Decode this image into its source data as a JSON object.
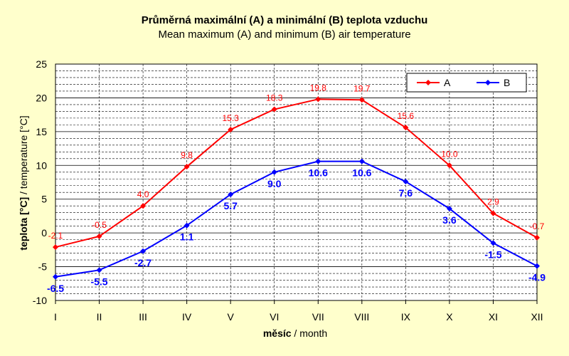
{
  "chart_data": {
    "type": "line",
    "title": "Průměrná maximální (A) a minimální (B) teplota vzduchu",
    "subtitle": "Mean maximum (A) and minimum (B) air temperature",
    "xlabel_bold": "měsíc",
    "xlabel_rest": " / month",
    "ylabel_bold": "teplota [°C]",
    "ylabel_rest": " / temperature [°C]",
    "categories": [
      "I",
      "II",
      "III",
      "IV",
      "V",
      "VI",
      "VII",
      "VIII",
      "IX",
      "X",
      "XI",
      "XII"
    ],
    "ylim": [
      -10,
      25
    ],
    "yticks": [
      -10,
      -5,
      0,
      5,
      10,
      15,
      20,
      25
    ],
    "grid": true,
    "legend_position": "top-right",
    "series": [
      {
        "name": "A",
        "color": "#ff0000",
        "values": [
          -2.1,
          -0.5,
          4.0,
          9.8,
          15.3,
          18.3,
          19.8,
          19.7,
          15.6,
          10.0,
          2.9,
          -0.7
        ],
        "labels": [
          "-2.1",
          "-0.5",
          "4.0",
          "9.8",
          "15.3",
          "18.3",
          "19.8",
          "19.7",
          "15.6",
          "10.0",
          "2.9",
          "-0.7"
        ]
      },
      {
        "name": "B",
        "color": "#0000ff",
        "values": [
          -6.5,
          -5.5,
          -2.7,
          1.1,
          5.7,
          9.0,
          10.6,
          10.6,
          7.6,
          3.6,
          -1.5,
          -4.9
        ],
        "labels": [
          "-6.5",
          "-5.5",
          "-2.7",
          "1.1",
          "5.7",
          "9.0",
          "10.6",
          "10.6",
          "7.6",
          "3.6",
          "-1.5",
          "-4.9"
        ]
      }
    ]
  }
}
